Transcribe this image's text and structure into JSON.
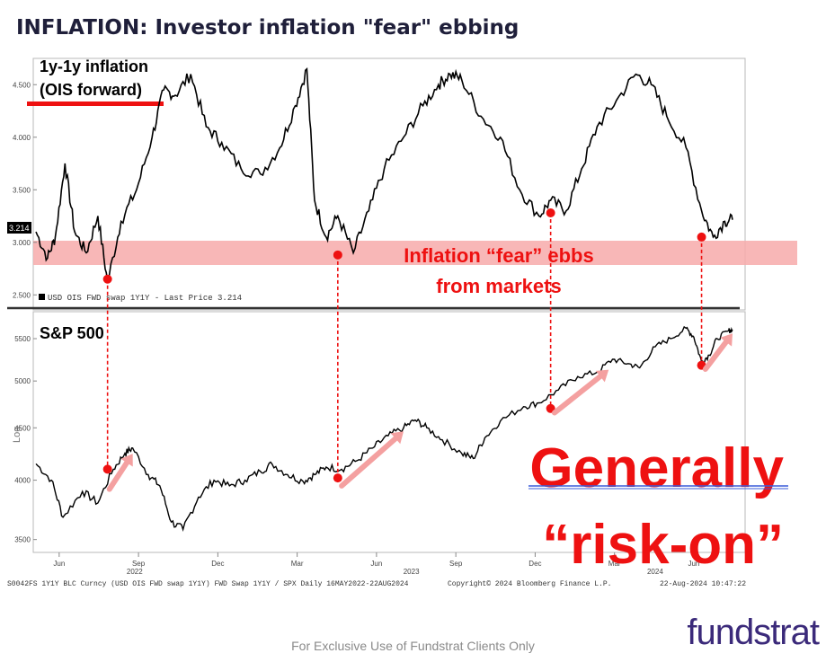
{
  "title": "INFLATION: Investor inflation \"fear\" ebbing",
  "footer": "For Exclusive Use of Fundstrat Clients Only",
  "logo": "fundstrat",
  "colors": {
    "series": "#000000",
    "annotation": "#ee1111",
    "band": "#f5a6a6",
    "arrow": "#f4a0a0",
    "divider": "#333333"
  },
  "chart_data": {
    "type": "line",
    "x_ticks": [
      "Jun",
      "Sep",
      "Dec",
      "Mar",
      "Jun",
      "Sep",
      "Dec",
      "Mar",
      "Jun"
    ],
    "year_labels": [
      "2022",
      "2023",
      "2024"
    ],
    "panels": [
      {
        "name": "1y-1y inflation (OIS forward)",
        "label_lines": [
          "1y-1y inflation",
          "(OIS forward)"
        ],
        "legend": "USD OIS FWD swap 1Y1Y - Last Price 3.214",
        "last_price": "3.214",
        "y_ticks": [
          "4.500",
          "4.000",
          "3.500",
          "3.000",
          "2.500"
        ],
        "ylim": [
          2.4,
          4.75
        ],
        "points": [
          [
            0,
            3.1
          ],
          [
            0.3,
            2.85
          ],
          [
            0.5,
            3.05
          ],
          [
            0.75,
            3.75
          ],
          [
            1.0,
            3.1
          ],
          [
            1.3,
            2.9
          ],
          [
            1.6,
            3.25
          ],
          [
            1.85,
            2.62
          ],
          [
            2.2,
            3.2
          ],
          [
            2.6,
            3.5
          ],
          [
            3.0,
            4.0
          ],
          [
            3.3,
            4.45
          ],
          [
            3.6,
            4.4
          ],
          [
            4.0,
            4.6
          ],
          [
            4.4,
            4.1
          ],
          [
            4.8,
            3.95
          ],
          [
            5.3,
            3.7
          ],
          [
            5.8,
            3.65
          ],
          [
            6.3,
            3.9
          ],
          [
            6.7,
            4.3
          ],
          [
            7.0,
            4.65
          ],
          [
            7.2,
            3.4
          ],
          [
            7.5,
            3.05
          ],
          [
            7.8,
            3.25
          ],
          [
            8.2,
            2.9
          ],
          [
            8.6,
            3.3
          ],
          [
            9.0,
            3.7
          ],
          [
            9.5,
            4.0
          ],
          [
            10.0,
            4.3
          ],
          [
            10.4,
            4.5
          ],
          [
            10.7,
            4.6
          ],
          [
            11.0,
            4.55
          ],
          [
            11.5,
            4.2
          ],
          [
            12.0,
            4.0
          ],
          [
            12.5,
            3.5
          ],
          [
            13.0,
            3.25
          ],
          [
            13.3,
            3.4
          ],
          [
            13.7,
            3.3
          ],
          [
            14.1,
            3.7
          ],
          [
            14.5,
            4.1
          ],
          [
            15.0,
            4.35
          ],
          [
            15.5,
            4.6
          ],
          [
            15.9,
            4.5
          ],
          [
            16.3,
            4.2
          ],
          [
            16.8,
            3.9
          ],
          [
            17.2,
            3.3
          ],
          [
            17.5,
            3.05
          ],
          [
            17.8,
            3.2
          ],
          [
            18.0,
            3.214
          ]
        ]
      },
      {
        "name": "S&P 500",
        "label": "S&P 500",
        "axis_label": "Log",
        "y_ticks": [
          "5500",
          "5000",
          "4500",
          "4000",
          "3500"
        ],
        "ylim": [
          3400,
          5750
        ],
        "points": [
          [
            0,
            4150
          ],
          [
            0.4,
            4000
          ],
          [
            0.7,
            3680
          ],
          [
            1.2,
            3900
          ],
          [
            1.6,
            3800
          ],
          [
            2.0,
            4100
          ],
          [
            2.3,
            4250
          ],
          [
            2.5,
            4300
          ],
          [
            2.9,
            4050
          ],
          [
            3.2,
            3950
          ],
          [
            3.5,
            3640
          ],
          [
            3.8,
            3580
          ],
          [
            4.2,
            3850
          ],
          [
            4.6,
            4000
          ],
          [
            5.0,
            3950
          ],
          [
            5.4,
            4000
          ],
          [
            5.8,
            4080
          ],
          [
            6.1,
            4150
          ],
          [
            6.5,
            4050
          ],
          [
            6.9,
            3990
          ],
          [
            7.2,
            4050
          ],
          [
            7.5,
            4120
          ],
          [
            7.9,
            4100
          ],
          [
            8.3,
            4180
          ],
          [
            8.7,
            4300
          ],
          [
            9.1,
            4420
          ],
          [
            9.5,
            4500
          ],
          [
            9.8,
            4580
          ],
          [
            10.1,
            4500
          ],
          [
            10.5,
            4380
          ],
          [
            11.0,
            4250
          ],
          [
            11.3,
            4200
          ],
          [
            11.6,
            4400
          ],
          [
            12.0,
            4570
          ],
          [
            12.6,
            4720
          ],
          [
            13.0,
            4760
          ],
          [
            13.5,
            4900
          ],
          [
            14.0,
            5050
          ],
          [
            14.5,
            5100
          ],
          [
            14.9,
            5250
          ],
          [
            15.3,
            5200
          ],
          [
            15.6,
            5150
          ],
          [
            16.0,
            5400
          ],
          [
            16.4,
            5500
          ],
          [
            16.8,
            5630
          ],
          [
            17.0,
            5520
          ],
          [
            17.2,
            5220
          ],
          [
            17.4,
            5300
          ],
          [
            17.6,
            5500
          ],
          [
            17.9,
            5600
          ],
          [
            18.0,
            5610
          ]
        ]
      }
    ],
    "annotations": [
      "Inflation “fear” ebbs",
      "from markets"
    ],
    "conclusion": [
      "Generally",
      "“risk-on”"
    ],
    "source_left": "S0042FS 1Y1Y BLC Curncy (USD OIS FWD swap 1Y1Y) FWD Swap 1Y1Y / SPX  Daily 16MAY2022-22AUG2024",
    "source_mid": "Copyright© 2024 Bloomberg Finance L.P.",
    "source_right": "22-Aug-2024 10:47:22",
    "markers": [
      {
        "x": 1.85,
        "top": 2.65,
        "bottom": 4100
      },
      {
        "x": 7.8,
        "top": 2.88,
        "bottom": 4020
      },
      {
        "x": 13.3,
        "top": 3.28,
        "bottom": 4700
      },
      {
        "x": 17.2,
        "top": 3.05,
        "bottom": 5180
      }
    ],
    "trend_arrows": [
      {
        "x0": 1.9,
        "y0": 4000,
        "x1": 2.5,
        "y1": 4280
      },
      {
        "x0": 7.9,
        "y0": 4030,
        "x1": 9.5,
        "y1": 4500
      },
      {
        "x0": 13.4,
        "y0": 4750,
        "x1": 14.8,
        "y1": 5170
      },
      {
        "x0": 17.3,
        "y0": 5240,
        "x1": 18.0,
        "y1": 5610
      }
    ]
  }
}
